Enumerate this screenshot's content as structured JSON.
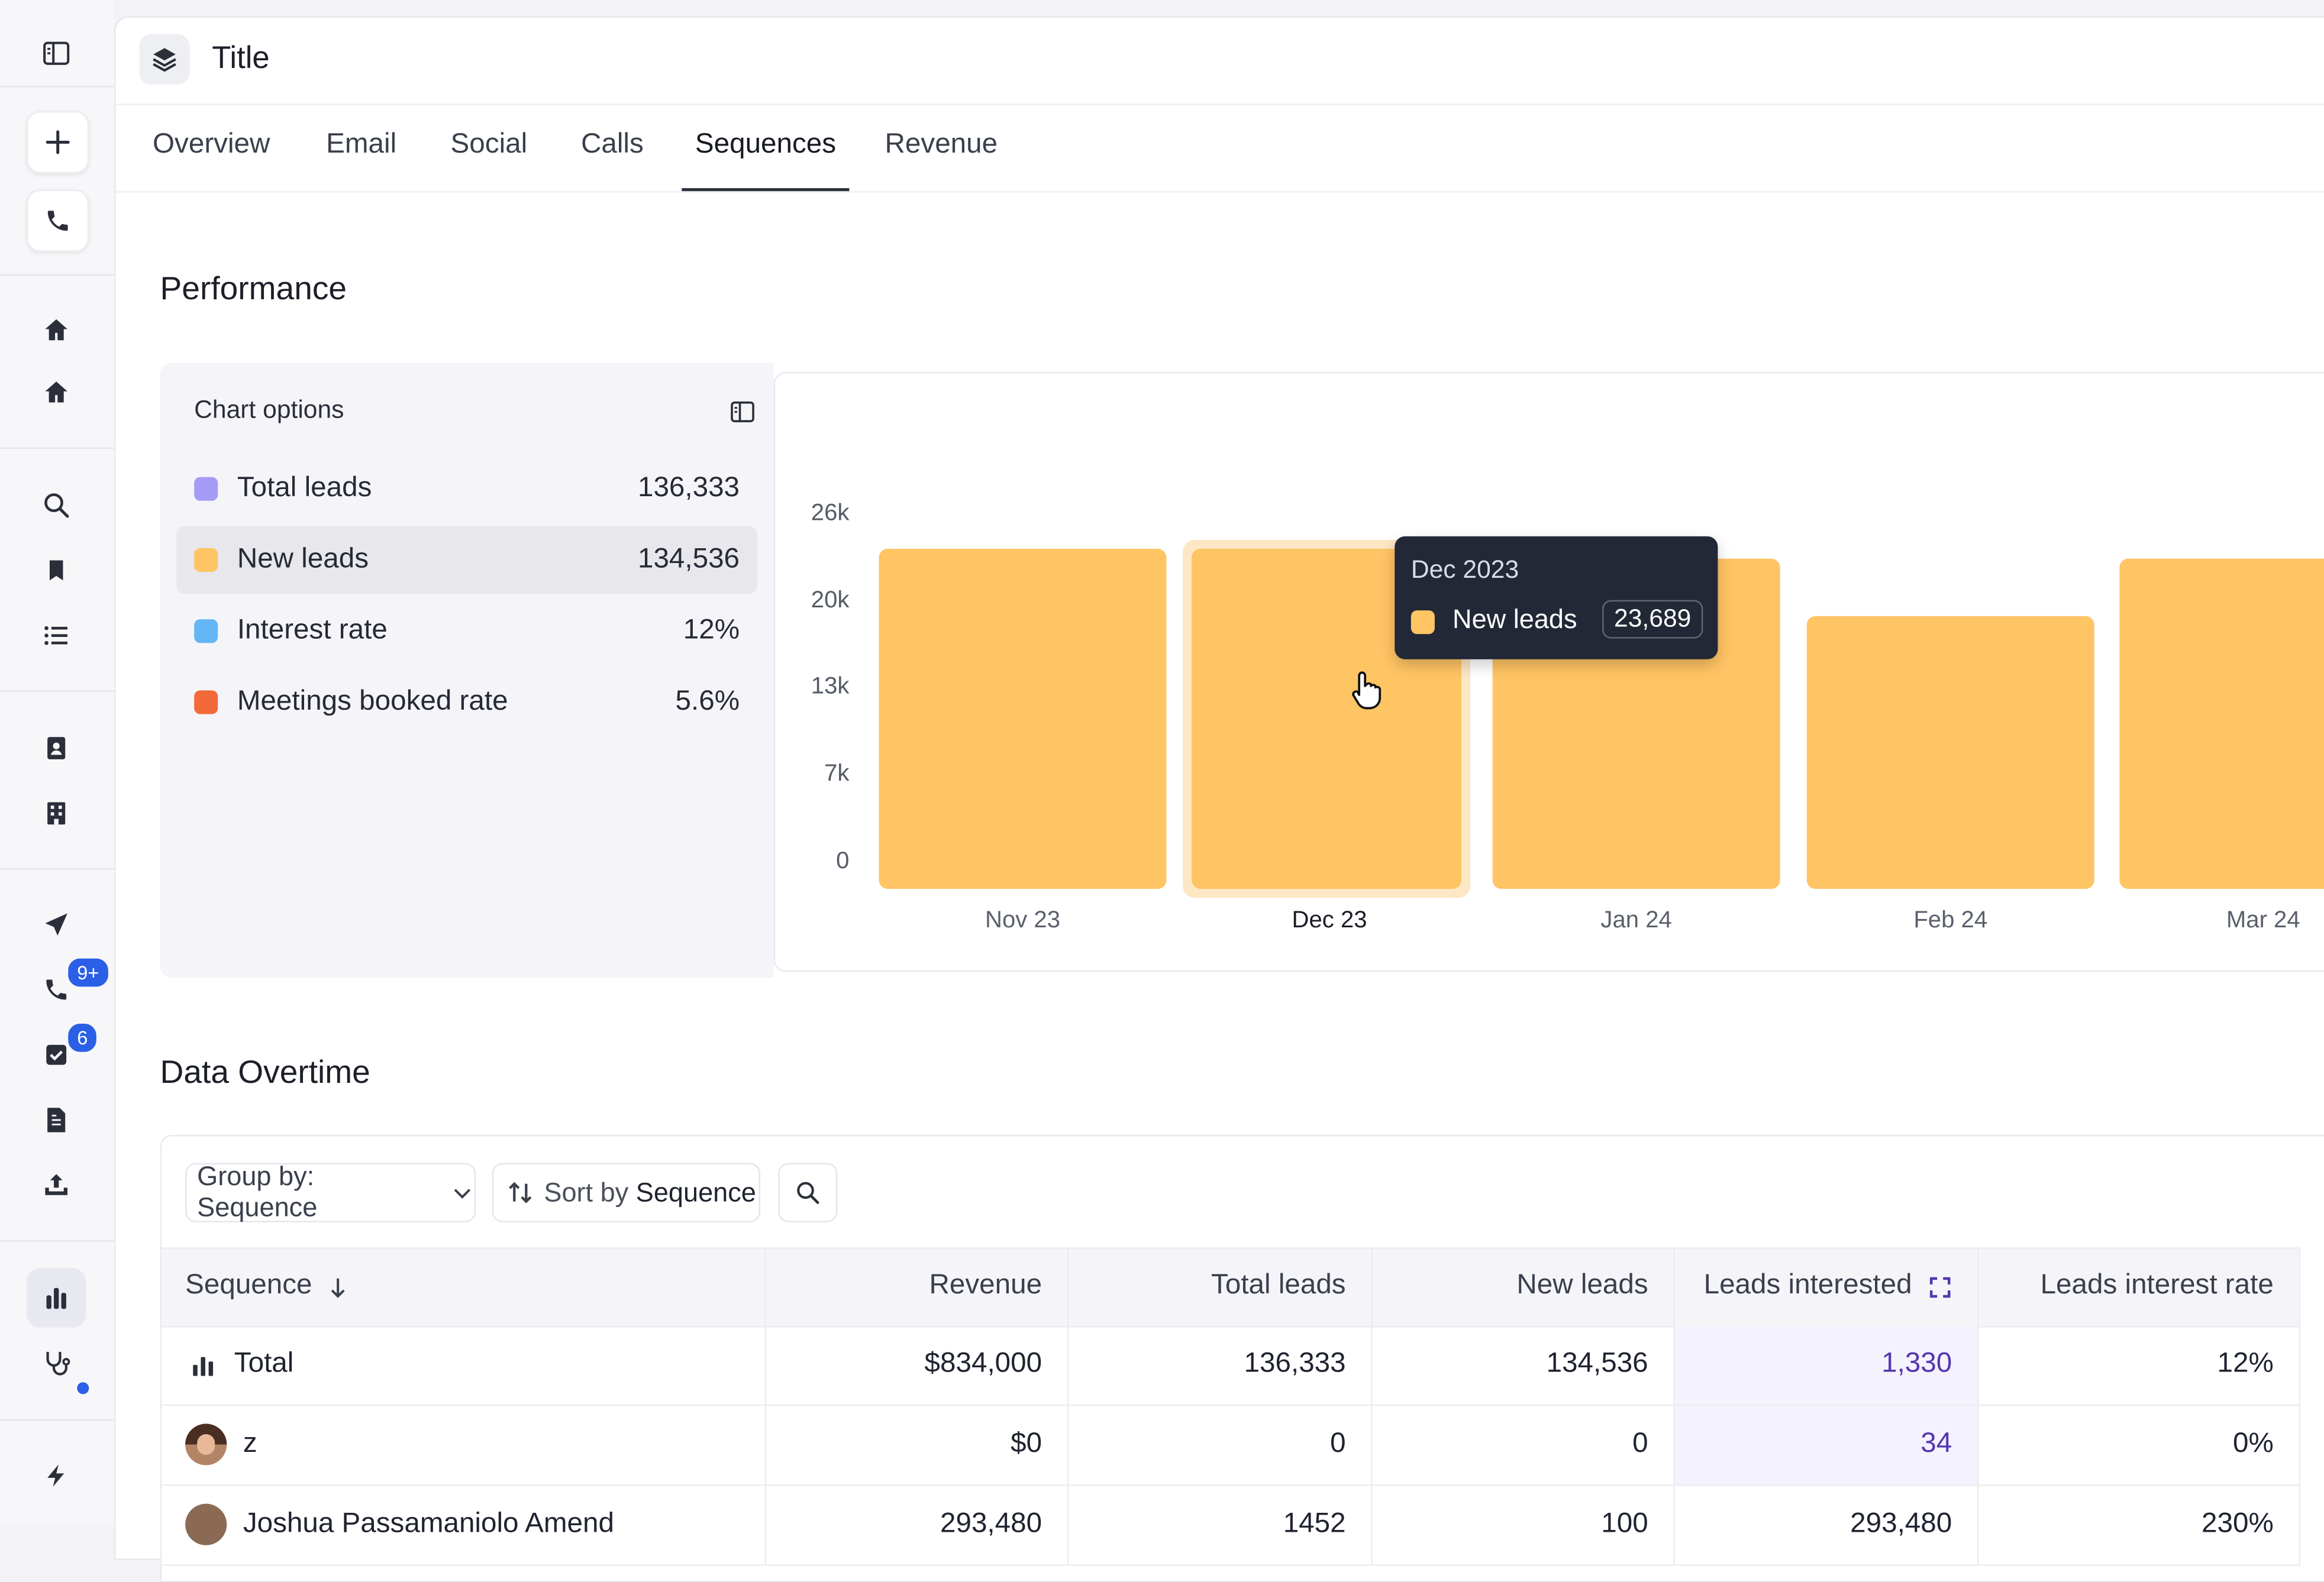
{
  "app": {
    "title": "Title"
  },
  "tabs": [
    {
      "label": "Overview"
    },
    {
      "label": "Email"
    },
    {
      "label": "Social"
    },
    {
      "label": "Calls"
    },
    {
      "label": "Sequences"
    },
    {
      "label": "Revenue"
    }
  ],
  "active_tab": "Sequences",
  "rail": {
    "calls_badge": "9+",
    "tasks_badge": "6"
  },
  "performance": {
    "heading": "Performance",
    "options_title": "Chart options",
    "metrics": [
      {
        "label": "Total leads",
        "value": "136,333",
        "color": "#a59cf7"
      },
      {
        "label": "New leads",
        "value": "134,536",
        "color": "#ffc464",
        "selected": true
      },
      {
        "label": "Interest rate",
        "value": "12%",
        "color": "#65b6f5"
      },
      {
        "label": "Meetings booked rate",
        "value": "5.6%",
        "color": "#f36a3a"
      }
    ]
  },
  "chart_data": {
    "type": "bar",
    "categories": [
      "Nov 23",
      "Dec 23",
      "Jan 24",
      "Feb 24",
      "Mar 24"
    ],
    "series": [
      {
        "name": "New leads",
        "values": [
          23689,
          23689,
          23000,
          19000,
          23000
        ],
        "color": "#ffc464"
      }
    ],
    "y_ticks": [
      "0",
      "7k",
      "13k",
      "20k",
      "26k"
    ],
    "ylim": [
      0,
      26000
    ],
    "highlighted_category": "Dec 23",
    "tooltip": {
      "title": "Dec 2023",
      "label": "New leads",
      "value": "23,689"
    }
  },
  "data_overtime": {
    "heading": "Data Overtime",
    "group_by": "Group by: Sequence",
    "sort_prefix": "Sort by",
    "sort_field": "Sequence",
    "columns": [
      "Sequence",
      "Revenue",
      "Total leads",
      "New leads",
      "Leads interested",
      "Leads interest rate"
    ],
    "rows": [
      {
        "name": "Total",
        "revenue": "$834,000",
        "total_leads": "136,333",
        "new_leads": "134,536",
        "leads_interested": "1,330",
        "interest_rate": "12%"
      },
      {
        "name": "z",
        "revenue": "$0",
        "total_leads": "0",
        "new_leads": "0",
        "leads_interested": "34",
        "interest_rate": "0%"
      },
      {
        "name": "Joshua Passamaniolo Amend",
        "revenue": "293,480",
        "total_leads": "1452",
        "new_leads": "100",
        "leads_interested": "293,480",
        "interest_rate": "230%"
      }
    ]
  }
}
